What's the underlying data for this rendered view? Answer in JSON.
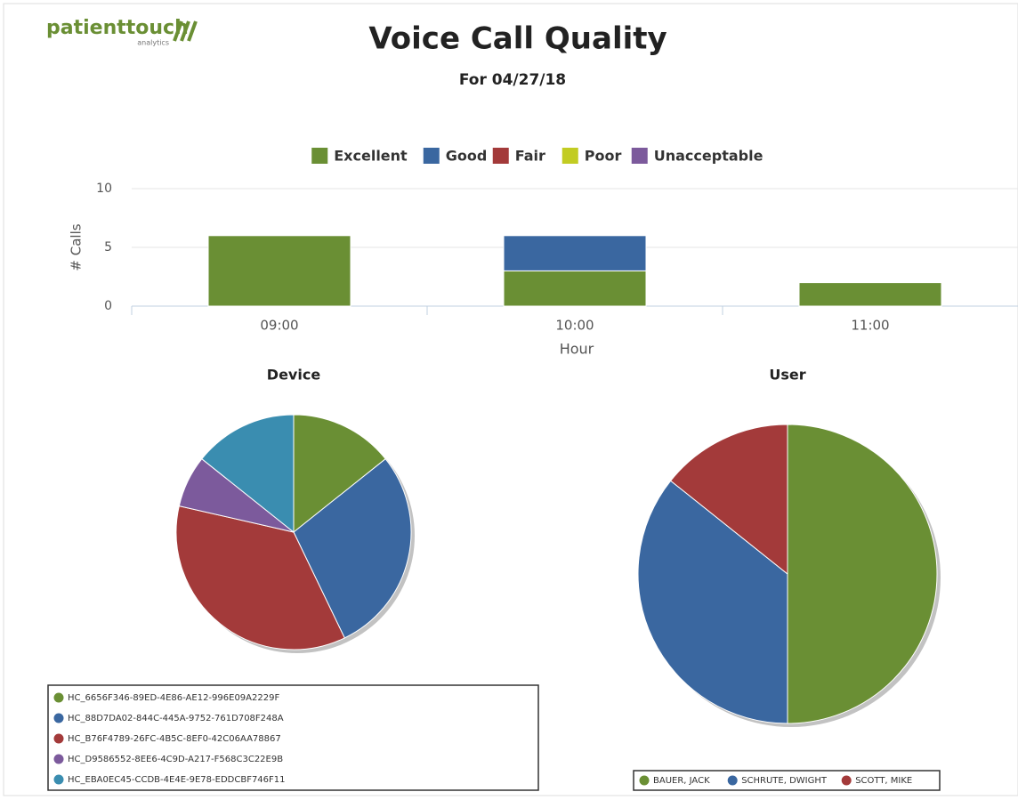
{
  "header": {
    "logo": "patienttouch",
    "logo_sub": "analytics",
    "title": "Voice Call Quality",
    "subtitle": "For 04/27/18"
  },
  "chart_data": [
    {
      "type": "bar",
      "stacked": true,
      "x_label": "Hour",
      "y_label": "# Calls",
      "categories": [
        "09:00",
        "10:00",
        "11:00"
      ],
      "series": [
        {
          "name": "Excellent",
          "color": "#6a8f34",
          "values": [
            6,
            3,
            2
          ]
        },
        {
          "name": "Good",
          "color": "#3a67a0",
          "values": [
            0,
            3,
            0
          ]
        },
        {
          "name": "Fair",
          "color": "#a33a3a",
          "values": [
            0,
            0,
            0
          ]
        },
        {
          "name": "Poor",
          "color": "#c2cc22",
          "values": [
            0,
            0,
            0
          ]
        },
        {
          "name": "Unacceptable",
          "color": "#7c5a9c",
          "values": [
            0,
            0,
            0
          ]
        }
      ],
      "ylim": [
        0,
        10
      ],
      "yticks": [
        0,
        5,
        10
      ],
      "grid": true,
      "legend": "top"
    },
    {
      "type": "pie",
      "title": "Device",
      "categories": [
        "HC_6656F346-89ED-4E86-AE12-996E09A2229F",
        "HC_88D7DA02-844C-445A-9752-761D708F248A",
        "HC_B76F4789-26FC-4B5C-8EF0-42C06AA78867",
        "HC_D9586552-8EE6-4C9D-A217-F568C3C22E9B",
        "HC_EBA0EC45-CCDB-4E4E-9E78-EDDCBF746F11"
      ],
      "values": [
        2,
        4,
        5,
        1,
        2
      ],
      "colors": [
        "#6a8f34",
        "#3a67a0",
        "#a33a3a",
        "#7c5a9c",
        "#3a8db0"
      ],
      "legend": "bottom"
    },
    {
      "type": "pie",
      "title": "User",
      "categories": [
        "BAUER, JACK",
        "SCHRUTE, DWIGHT",
        "SCOTT, MIKE"
      ],
      "values": [
        7,
        5,
        2
      ],
      "colors": [
        "#6a8f34",
        "#3a67a0",
        "#a33a3a"
      ],
      "legend": "bottom"
    }
  ]
}
